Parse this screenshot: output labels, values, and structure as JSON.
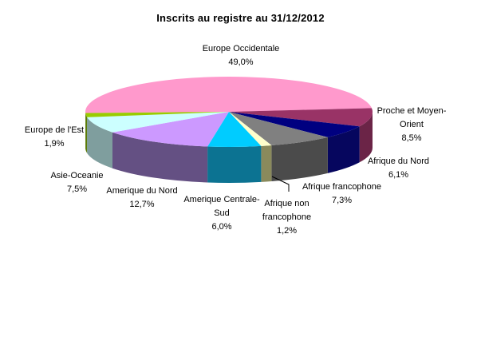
{
  "title": "Inscrits au registre au 31/12/2012",
  "chart_data": {
    "type": "pie",
    "style": "3d-pie",
    "title": "Inscrits au registre au 31/12/2012",
    "legend": "none",
    "labels_shown": "category-name-and-percentage",
    "decimal_separator": ",",
    "start_angle_deg": 178,
    "direction": "clockwise",
    "slices": [
      {
        "label": "Europe Occidentale",
        "value": 49.0,
        "pct_label": "49,0%",
        "color": "#ff99cc",
        "side_color": "#b5688f"
      },
      {
        "label": "Proche et Moyen-Orient",
        "value": 8.5,
        "pct_label": "8,5%",
        "color": "#993366",
        "side_color": "#6b2447"
      },
      {
        "label": "Afrique du Nord",
        "value": 6.1,
        "pct_label": "6,1%",
        "color": "#000080",
        "side_color": "#06065e"
      },
      {
        "label": "Afrique francophone",
        "value": 7.3,
        "pct_label": "7,3%",
        "color": "#808080",
        "side_color": "#4b4b4b"
      },
      {
        "label": "Afrique non francophone",
        "value": 1.2,
        "pct_label": "1,2%",
        "color": "#ffffcc",
        "side_color": "#8a8a5c"
      },
      {
        "label": "Amerique Centrale-Sud",
        "value": 6.0,
        "pct_label": "6,0%",
        "color": "#00ccff",
        "side_color": "#0c7392"
      },
      {
        "label": "Amerique du Nord",
        "value": 12.7,
        "pct_label": "12,7%",
        "color": "#cc99ff",
        "side_color": "#645083"
      },
      {
        "label": "Asie-Oceanie",
        "value": 7.5,
        "pct_label": "7,5%",
        "color": "#ccffff",
        "side_color": "#7f9e9e"
      },
      {
        "label": "Europe de l'Est",
        "value": 1.9,
        "pct_label": "1,9%",
        "color": "#99cc00",
        "side_color": "#5a7a06"
      }
    ]
  }
}
